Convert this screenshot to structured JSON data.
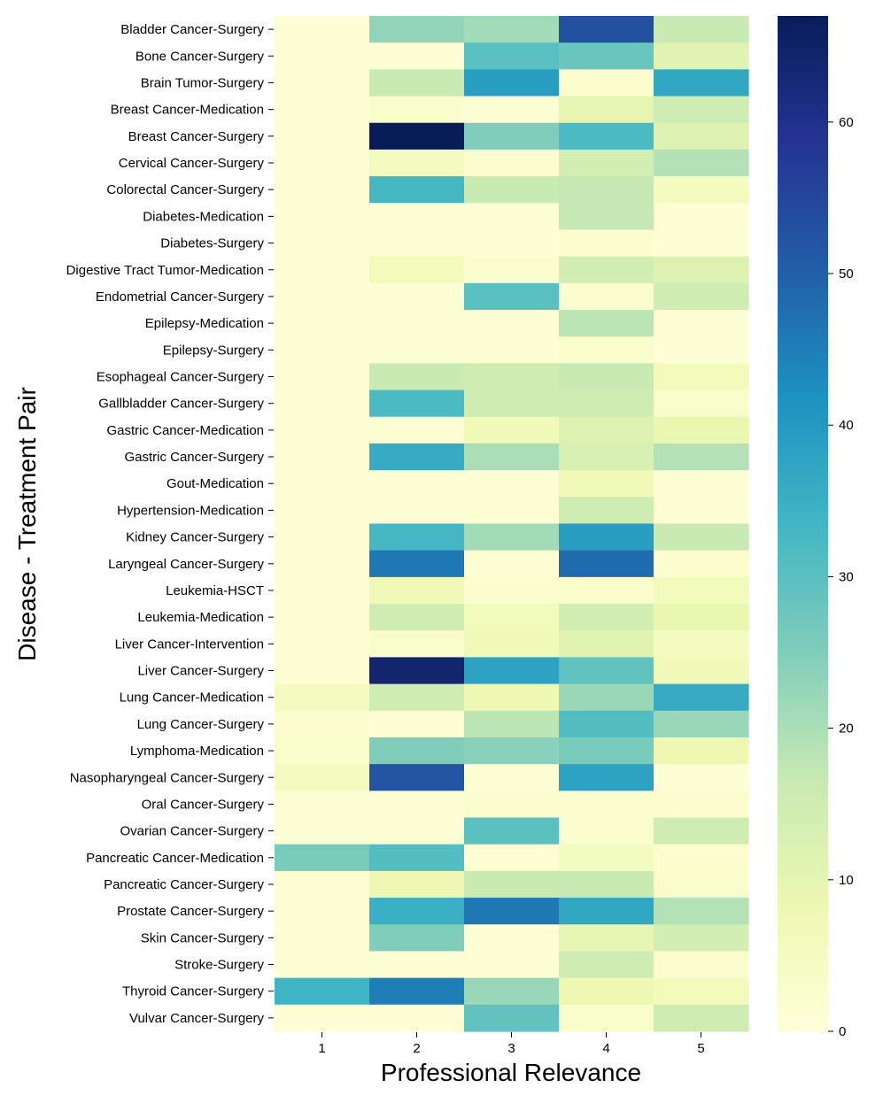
{
  "chart_data": {
    "type": "heatmap",
    "title": "",
    "xlabel": "Professional Relevance",
    "ylabel": "Disease - Treatment Pair",
    "x_categories": [
      "1",
      "2",
      "3",
      "4",
      "5"
    ],
    "y_categories": [
      "Bladder Cancer-Surgery",
      "Bone Cancer-Surgery",
      "Brain Tumor-Surgery",
      "Breast Cancer-Medication",
      "Breast Cancer-Surgery",
      "Cervical Cancer-Surgery",
      "Colorectal Cancer-Surgery",
      "Diabetes-Medication",
      "Diabetes-Surgery",
      "Digestive Tract Tumor-Medication",
      "Endometrial Cancer-Surgery",
      "Epilepsy-Medication",
      "Epilepsy-Surgery",
      "Esophageal Cancer-Surgery",
      "Gallbladder Cancer-Surgery",
      "Gastric Cancer-Medication",
      "Gastric Cancer-Surgery",
      "Gout-Medication",
      "Hypertension-Medication",
      "Kidney Cancer-Surgery",
      "Laryngeal Cancer-Surgery",
      "Leukemia-HSCT",
      "Leukemia-Medication",
      "Liver Cancer-Intervention",
      "Liver Cancer-Surgery",
      "Lung Cancer-Medication",
      "Lung Cancer-Surgery",
      "Lymphoma-Medication",
      "Nasopharyngeal Cancer-Surgery",
      "Oral Cancer-Surgery",
      "Ovarian Cancer-Surgery",
      "Pancreatic Cancer-Medication",
      "Pancreatic Cancer-Surgery",
      "Prostate Cancer-Surgery",
      "Skin Cancer-Surgery",
      "Stroke-Surgery",
      "Thyroid Cancer-Surgery",
      "Vulvar Cancer-Surgery"
    ],
    "values": [
      [
        1,
        23,
        21,
        53,
        16
      ],
      [
        1,
        1,
        30,
        28,
        11
      ],
      [
        1,
        16,
        39,
        2,
        37
      ],
      [
        1,
        3,
        1,
        10,
        15
      ],
      [
        1,
        67,
        25,
        32,
        12
      ],
      [
        1,
        5,
        2,
        14,
        19
      ],
      [
        1,
        33,
        16,
        17,
        5
      ],
      [
        1,
        1,
        1,
        17,
        1
      ],
      [
        1,
        1,
        1,
        2,
        1
      ],
      [
        1,
        6,
        2,
        14,
        12
      ],
      [
        1,
        1,
        30,
        2,
        15
      ],
      [
        1,
        1,
        1,
        18,
        1
      ],
      [
        1,
        1,
        1,
        3,
        1
      ],
      [
        1,
        16,
        15,
        16,
        6
      ],
      [
        1,
        32,
        15,
        15,
        3
      ],
      [
        1,
        1,
        7,
        12,
        9
      ],
      [
        1,
        36,
        20,
        13,
        19
      ],
      [
        1,
        1,
        1,
        7,
        1
      ],
      [
        1,
        1,
        1,
        15,
        1
      ],
      [
        1,
        33,
        21,
        39,
        16
      ],
      [
        1,
        46,
        1,
        48,
        2
      ],
      [
        1,
        7,
        2,
        3,
        6
      ],
      [
        1,
        15,
        6,
        14,
        9
      ],
      [
        1,
        3,
        7,
        11,
        5
      ],
      [
        1,
        64,
        38,
        29,
        7
      ],
      [
        5,
        15,
        8,
        22,
        36
      ],
      [
        2,
        1,
        18,
        31,
        22
      ],
      [
        3,
        25,
        24,
        26,
        8
      ],
      [
        5,
        52,
        1,
        38,
        1
      ],
      [
        1,
        1,
        2,
        2,
        2
      ],
      [
        1,
        1,
        30,
        2,
        15
      ],
      [
        26,
        31,
        1,
        5,
        2
      ],
      [
        1,
        8,
        16,
        16,
        3
      ],
      [
        1,
        35,
        46,
        37,
        19
      ],
      [
        1,
        25,
        1,
        10,
        14
      ],
      [
        1,
        1,
        1,
        15,
        2
      ],
      [
        34,
        45,
        22,
        8,
        6
      ],
      [
        1,
        1,
        29,
        3,
        15
      ]
    ],
    "vmin": 0,
    "vmax": 67,
    "colormap": "YlGnBu",
    "colorbar_ticks": [
      0,
      10,
      20,
      30,
      40,
      50,
      60
    ],
    "colorbar_tick_labels": [
      "0",
      "10",
      "20",
      "30",
      "40",
      "50",
      "60"
    ],
    "grid": false,
    "legend": "colorbar-right"
  }
}
